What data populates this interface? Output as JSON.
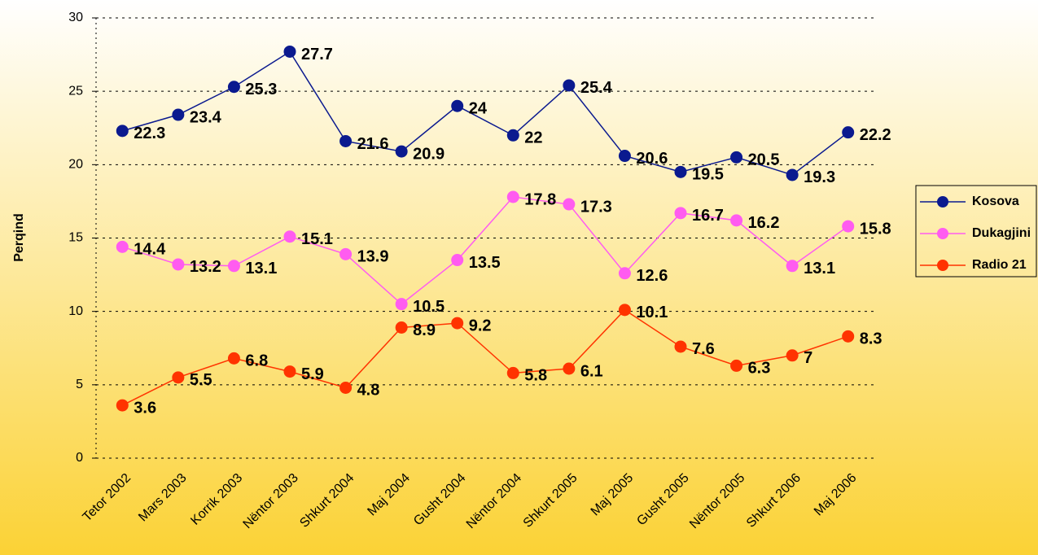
{
  "chart_data": {
    "type": "line",
    "y_label": "Perqind",
    "categories": [
      "Tetor 2002",
      "Mars 2003",
      "Korrik 2003",
      "Nëntor 2003",
      "Shkurt 2004",
      "Maj 2004",
      "Gusht 2004",
      "Nëntor 2004",
      "Shkurt 2005",
      "Maj 2005",
      "Gusht 2005",
      "Nëntor 2005",
      "Shkurt 2006",
      "Maj 2006"
    ],
    "series": [
      {
        "name": "Kosova",
        "color": "#0b1a8f",
        "values": [
          22.3,
          23.4,
          25.3,
          27.7,
          21.6,
          20.9,
          24,
          22,
          25.4,
          20.6,
          19.5,
          20.5,
          19.3,
          22.2
        ]
      },
      {
        "name": "Dukagjini",
        "color": "#ff5cf0",
        "values": [
          14.4,
          13.2,
          13.1,
          15.1,
          13.9,
          10.5,
          13.5,
          17.8,
          17.3,
          12.6,
          16.7,
          16.2,
          13.1,
          15.8
        ]
      },
      {
        "name": "Radio 21",
        "color": "#ff3300",
        "values": [
          3.6,
          5.5,
          6.8,
          5.9,
          4.8,
          8.9,
          9.2,
          5.8,
          6.1,
          10.1,
          7.6,
          6.3,
          7,
          8.3
        ]
      }
    ],
    "ylim": [
      0,
      30
    ],
    "yticks": [
      0,
      5,
      10,
      15,
      20,
      25,
      30
    ],
    "grid": true,
    "legend": "right"
  }
}
